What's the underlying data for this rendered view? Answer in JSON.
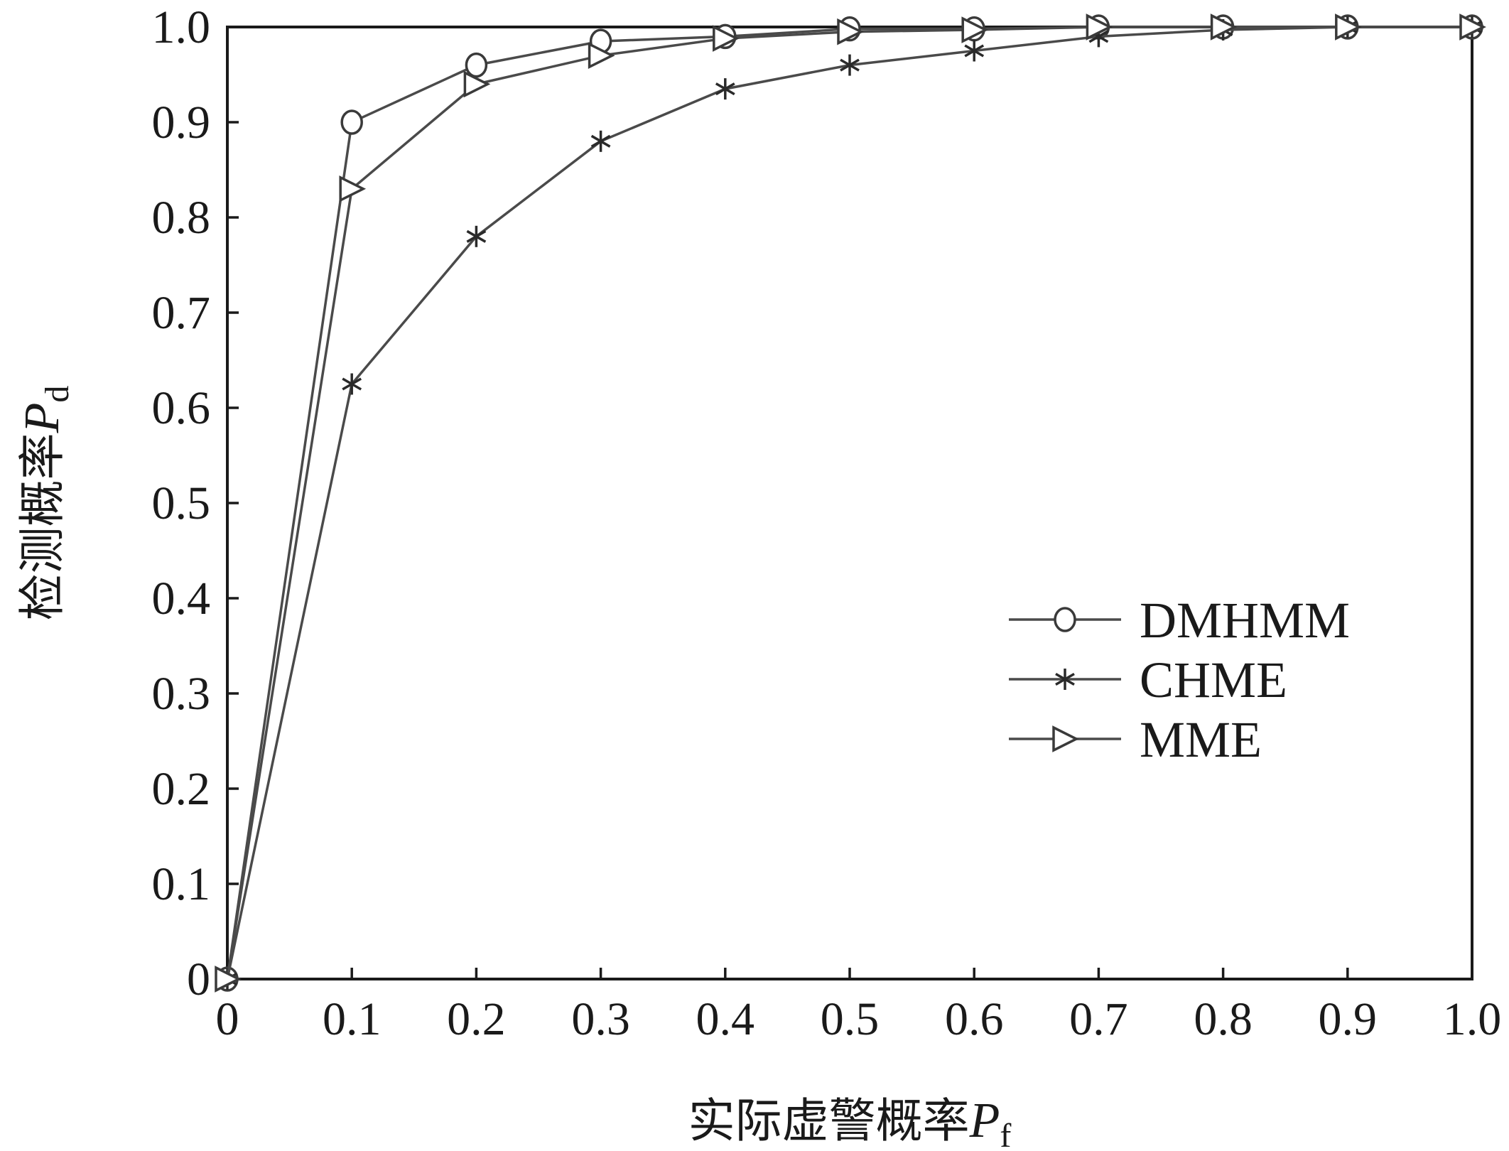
{
  "chart_data": {
    "type": "line",
    "title": "",
    "xlabel": {
      "text": "实际虚警概率",
      "symbol": "P",
      "subscript": "f"
    },
    "ylabel": {
      "text": "检测概率",
      "symbol": "P",
      "subscript": "d"
    },
    "xlim": [
      0,
      1.0
    ],
    "ylim": [
      0,
      1.0
    ],
    "x_ticks": [
      "0",
      "0.1",
      "0.2",
      "0.3",
      "0.4",
      "0.5",
      "0.6",
      "0.7",
      "0.8",
      "0.9",
      "1.0"
    ],
    "y_ticks": [
      "0",
      "0.1",
      "0.2",
      "0.3",
      "0.4",
      "0.5",
      "0.6",
      "0.7",
      "0.8",
      "0.9",
      "1.0"
    ],
    "grid": false,
    "legend_position": "center-right",
    "line_color": "#4a4a4a",
    "series": [
      {
        "name": "DMHMM",
        "marker": "circle",
        "x": [
          0,
          0.1,
          0.2,
          0.3,
          0.4,
          0.5,
          0.6,
          0.7,
          0.8,
          0.9,
          1.0
        ],
        "y": [
          0,
          0.9,
          0.96,
          0.985,
          0.99,
          0.998,
          0.998,
          1.0,
          1.0,
          1.0,
          1.0
        ]
      },
      {
        "name": "CHME",
        "marker": "star",
        "x": [
          0,
          0.1,
          0.2,
          0.3,
          0.4,
          0.5,
          0.6,
          0.7,
          0.8,
          0.9,
          1.0
        ],
        "y": [
          0,
          0.625,
          0.78,
          0.88,
          0.935,
          0.96,
          0.975,
          0.99,
          0.997,
          1.0,
          1.0
        ]
      },
      {
        "name": "MME",
        "marker": "triangle-right",
        "x": [
          0,
          0.1,
          0.2,
          0.3,
          0.4,
          0.5,
          0.6,
          0.7,
          0.8,
          0.9,
          1.0
        ],
        "y": [
          0,
          0.83,
          0.94,
          0.97,
          0.988,
          0.995,
          0.997,
          1.0,
          1.0,
          1.0,
          1.0
        ]
      }
    ]
  }
}
